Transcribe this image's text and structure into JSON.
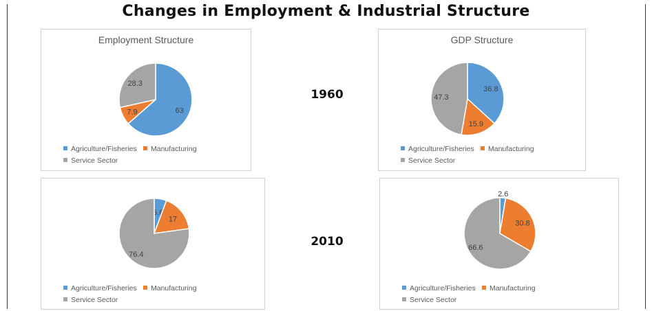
{
  "page": {
    "title": "Changes in Employment & Industrial Structure"
  },
  "years": [
    "1960",
    "2010"
  ],
  "legend_labels": [
    "Agriculture/Fisheries",
    "Manufacturing",
    "Service Sector"
  ],
  "colors": {
    "Agriculture/Fisheries": "#5b9bd5",
    "Manufacturing": "#ed7d31",
    "Service Sector": "#a5a5a5"
  },
  "chart_data": [
    {
      "type": "pie",
      "title": "Employment Structure",
      "year": "1960",
      "categories": [
        "Agriculture/Fisheries",
        "Manufacturing",
        "Service Sector"
      ],
      "values": [
        63,
        7.9,
        28.3
      ],
      "legend_position": "bottom"
    },
    {
      "type": "pie",
      "title": "GDP Structure",
      "year": "1960",
      "categories": [
        "Agriculture/Fisheries",
        "Manufacturing",
        "Service Sector"
      ],
      "values": [
        36.8,
        15.9,
        47.3
      ],
      "legend_position": "bottom"
    },
    {
      "type": "pie",
      "title": "",
      "year": "2010",
      "categories": [
        "Agriculture/Fisheries",
        "Manufacturing",
        "Service Sector"
      ],
      "values": [
        5.6,
        17,
        76.4
      ],
      "legend_position": "bottom"
    },
    {
      "type": "pie",
      "title": "",
      "year": "2010",
      "categories": [
        "Agriculture/Fisheries",
        "Manufacturing",
        "Service Sector"
      ],
      "values": [
        2.6,
        30.8,
        66.6
      ],
      "legend_position": "bottom"
    }
  ]
}
